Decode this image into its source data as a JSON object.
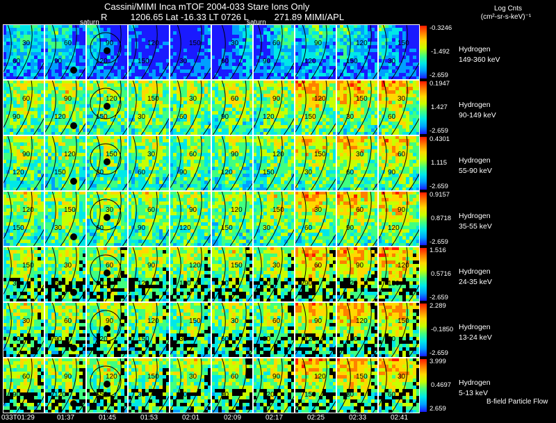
{
  "header": {
    "title": "Cassini/MIMI Inca mTOF  2004-033   Stare   Ions Only",
    "r_label": "R",
    "r_value": "1206.65",
    "lat_label": "Lat",
    "lat_value": "-16.33",
    "lt_label": "LT",
    "lt_value": "0726",
    "l_label": "L",
    "l_value": "271.89",
    "credit": "MIMI/APL",
    "units_line1": "Log Cnts",
    "units_line2": "(cm²-sr-s-keV)⁻¹"
  },
  "panel_notes": [
    "saturn",
    "saturn"
  ],
  "footer": {
    "flow_label": "B-field Particle Flow"
  },
  "chart_data": {
    "type": "heatmap",
    "title": "Cassini/MIMI Inca mTOF  2004-033   Stare   Ions Only",
    "x_labels": [
      "033T01:29",
      "01:37",
      "01:45",
      "01:53",
      "02:01",
      "02:09",
      "02:17",
      "02:25",
      "02:33",
      "02:41"
    ],
    "rows": [
      {
        "species": "Hydrogen",
        "energy": "149-360 keV",
        "cbar_max": "-0.3246",
        "cbar_mid": "-1.492",
        "cbar_min": "-2.659",
        "level": 0.25
      },
      {
        "species": "Hydrogen",
        "energy": "90-149 keV",
        "cbar_max": "0.1947",
        "cbar_mid": "1.427",
        "cbar_min": "-2.659",
        "level": 0.62
      },
      {
        "species": "Hydrogen",
        "energy": "55-90 keV",
        "cbar_max": "0.4301",
        "cbar_mid": "1.115",
        "cbar_min": "-2.659",
        "level": 0.58
      },
      {
        "species": "Hydrogen",
        "energy": "35-55 keV",
        "cbar_max": "0.9157",
        "cbar_mid": "0.8718",
        "cbar_min": "-2.659",
        "level": 0.6
      },
      {
        "species": "Hydrogen",
        "energy": "24-35 keV",
        "cbar_max": "1.516",
        "cbar_mid": "0.5716",
        "cbar_min": "-2.659",
        "level": 0.62
      },
      {
        "species": "Hydrogen",
        "energy": "13-24 keV",
        "cbar_max": "2.289",
        "cbar_mid": "-0.1850",
        "cbar_min": "-2.659",
        "level": 0.6
      },
      {
        "species": "Hydrogen",
        "energy": "5-13 keV",
        "cbar_max": "3.999",
        "cbar_mid": "0.4697",
        "cbar_min": "2.659",
        "level": 0.62
      }
    ],
    "contour_labels": [
      "30",
      "60",
      "90",
      "120",
      "150"
    ],
    "colormap": [
      "#1a1aff",
      "#00a0ff",
      "#00e8e8",
      "#40ff80",
      "#c8ff00",
      "#ffd800",
      "#ff8000",
      "#ff1a00"
    ],
    "grid": true
  }
}
